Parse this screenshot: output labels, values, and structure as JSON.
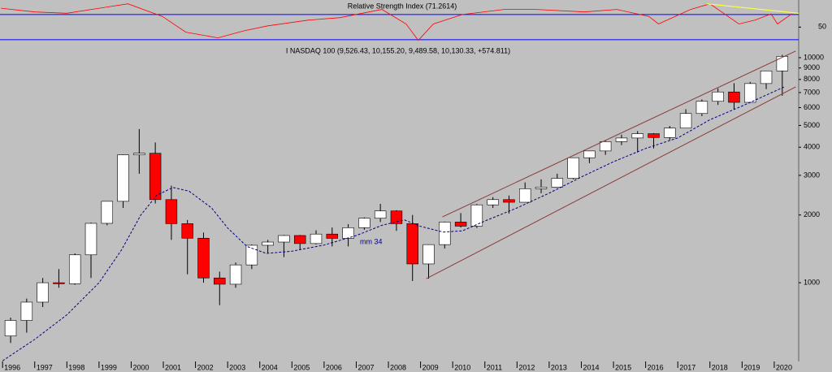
{
  "chart_data": [
    {
      "type": "line",
      "title": "Relative Strength Index (71.2614)",
      "x": [
        1995.95,
        1997,
        1998,
        1999.9,
        2000.97,
        2001.7,
        2002.7,
        2003.5,
        2004.25,
        2005.5,
        2006.5,
        2007.8,
        2008.55,
        2008.93,
        2009.4,
        2010.3,
        2011.6,
        2012.6,
        2014.1,
        2015.1,
        2016.1,
        2016.4,
        2017.4,
        2018.0,
        2018.9,
        2019.4,
        2019.9,
        2020.1,
        2020.55
      ],
      "values": [
        80,
        74,
        72,
        87,
        67,
        42,
        33,
        44,
        52,
        61,
        65,
        78,
        55,
        29,
        55,
        70,
        78,
        78,
        74,
        78,
        67,
        55,
        78,
        87,
        55,
        61,
        71,
        55,
        71.26
      ],
      "color": "#ff0000",
      "levels": [
        70,
        30
      ],
      "level_color": "#0000ff",
      "trendline": {
        "x": [
          2017.9,
          2020.76
        ],
        "values": [
          87,
          72
        ],
        "color": "#ffff40"
      },
      "xlim": [
        1995.92,
        2020.76
      ],
      "ylim": [
        26,
        93
      ],
      "yticks": [
        50
      ]
    },
    {
      "type": "candlestick",
      "title": "I NASDAQ 100 (9,526.43, 10,155.20, 9,489.58, 10,130.33, +574.811)",
      "x": [
        1996.25,
        1996.75,
        1997.25,
        1997.75,
        1998.25,
        1998.75,
        1999.25,
        1999.75,
        2000.25,
        2000.75,
        2001.25,
        2001.75,
        2002.25,
        2002.75,
        2003.25,
        2003.75,
        2004.25,
        2004.75,
        2005.25,
        2005.75,
        2006.25,
        2006.75,
        2007.25,
        2007.75,
        2008.25,
        2008.75,
        2009.25,
        2009.75,
        2010.25,
        2010.75,
        2011.25,
        2011.75,
        2012.25,
        2012.75,
        2013.25,
        2013.75,
        2014.25,
        2014.75,
        2015.25,
        2015.75,
        2016.25,
        2016.75,
        2017.25,
        2017.75,
        2018.25,
        2018.75,
        2019.25,
        2019.75,
        2020.25
      ],
      "open": [
        580,
        680,
        820,
        1000,
        990,
        1330,
        1836,
        2300,
        3700,
        3760,
        2340,
        1830,
        1577,
        1050,
        985,
        1200,
        1467,
        1516,
        1621,
        1493,
        1645,
        1575,
        1756,
        1934,
        2084,
        1830,
        1212,
        1477,
        1860,
        1784,
        2218,
        2340,
        2278,
        2616,
        2660,
        2910,
        3592,
        3850,
        4236,
        4396,
        4593,
        4418,
        4864,
        5647,
        6397,
        7040,
        6330,
        7672,
        8733
      ],
      "high": [
        700,
        850,
        1050,
        1150,
        1350,
        1850,
        2300,
        3710,
        4816,
        4200,
        2700,
        1900,
        1670,
        1120,
        1230,
        1480,
        1550,
        1630,
        1630,
        1710,
        1760,
        1820,
        1950,
        2240,
        2100,
        2000,
        1480,
        1870,
        2040,
        2240,
        2400,
        2440,
        2790,
        2880,
        3050,
        3600,
        3860,
        4300,
        4550,
        4720,
        4620,
        4970,
        5900,
        6520,
        7300,
        7700,
        7800,
        8750,
        10300
      ],
      "low": [
        540,
        600,
        780,
        950,
        980,
        1050,
        1800,
        2150,
        3050,
        2250,
        1550,
        1090,
        1000,
        795,
        950,
        1150,
        1350,
        1300,
        1400,
        1480,
        1450,
        1450,
        1720,
        1860,
        1700,
        1018,
        1043,
        1420,
        1760,
        1750,
        2150,
        2030,
        2270,
        2500,
        2660,
        2880,
        3400,
        3700,
        4090,
        3790,
        3950,
        4310,
        4860,
        5500,
        6170,
        5900,
        6300,
        7250,
        6770
      ],
      "close": [
        680,
        820,
        1000,
        990,
        1330,
        1836,
        2300,
        3700,
        3760,
        2340,
        1830,
        1577,
        1050,
        985,
        1200,
        1467,
        1516,
        1621,
        1493,
        1645,
        1575,
        1756,
        1934,
        2084,
        1830,
        1212,
        1477,
        1860,
        1784,
        2218,
        2340,
        2278,
        2616,
        2660,
        2910,
        3592,
        3850,
        4236,
        4396,
        4593,
        4418,
        4864,
        5647,
        6397,
        7040,
        6330,
        7672,
        8733,
        10130.33
      ],
      "up_color": "#ffffff",
      "down_color": "#ff0000",
      "log_scale": true,
      "moving_average": {
        "label": "mm 34",
        "color": "#000080",
        "x": [
          1996.0,
          1997,
          1998,
          1999,
          1999.7,
          2000.3,
          2000.8,
          2001.3,
          2001.8,
          2002.5,
          2003.0,
          2003.6,
          2004.2,
          2005.0,
          2006.0,
          2007.0,
          2007.8,
          2008.5,
          2009.0,
          2009.7,
          2010.3,
          2011.0,
          2012.0,
          2013.0,
          2014.0,
          2015.0,
          2016.0,
          2017.0,
          2018.0,
          2019.0,
          2020.3
        ],
        "values": [
          450,
          560,
          720,
          1000,
          1400,
          2000,
          2450,
          2650,
          2550,
          2150,
          1750,
          1450,
          1350,
          1380,
          1470,
          1620,
          1800,
          1900,
          1780,
          1680,
          1700,
          1880,
          2150,
          2500,
          2950,
          3450,
          3950,
          4400,
          5300,
          6100,
          7400
        ]
      },
      "channel": {
        "color": "#8b3a3a",
        "lines": [
          {
            "x": [
              2009.68,
              2020.67
            ],
            "values": [
              1960,
              10700
            ]
          },
          {
            "x": [
              2009.18,
              2020.67
            ],
            "values": [
              1042,
              7420
            ]
          }
        ]
      },
      "xlim": [
        1995.92,
        2020.76
      ],
      "ylim": [
        447,
        11420
      ],
      "xticks": [
        1996,
        1997,
        1998,
        1999,
        2000,
        2001,
        2002,
        2003,
        2004,
        2005,
        2006,
        2007,
        2008,
        2009,
        2010,
        2011,
        2012,
        2013,
        2014,
        2015,
        2016,
        2017,
        2018,
        2019,
        2020
      ],
      "yticks": [
        1000,
        2000,
        3000,
        4000,
        5000,
        6000,
        7000,
        8000,
        9000,
        10000
      ]
    }
  ]
}
